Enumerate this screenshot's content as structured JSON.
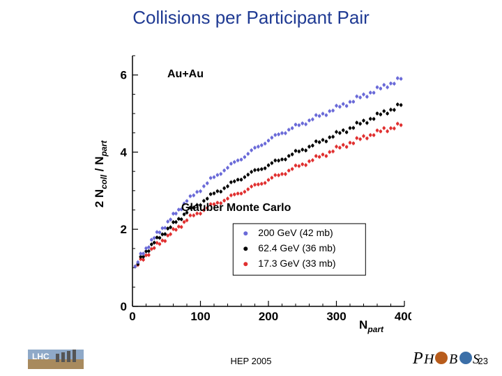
{
  "title": "Collisions per Participant Pair",
  "footer": "HEP 2005",
  "page": "23",
  "chart": {
    "type": "scatter",
    "xlabel": "N",
    "xlabel_sub": "part",
    "ylabel_coll": "coll",
    "ylabel_part": "part",
    "xlim": [
      0,
      400
    ],
    "ylim": [
      0,
      6.5
    ],
    "x_ticks": [
      0,
      100,
      200,
      300,
      400
    ],
    "y_ticks": [
      0,
      2,
      4,
      6
    ],
    "label_fontsize": 17,
    "tick_fontsize": 17,
    "marker_size": 2.2,
    "annotations": {
      "system": "Au+Au",
      "model": "Glauber Monte Carlo"
    },
    "legend": {
      "items": [
        {
          "color": "#6a6ad8",
          "label": "200 GeV (42 mb)"
        },
        {
          "color": "#000000",
          "label": "62.4 GeV (36 mb)"
        },
        {
          "color": "#e03030",
          "label": "17.3 GeV (33 mb)"
        }
      ]
    },
    "series_colors": {
      "s200": "#6a6ad8",
      "s62": "#000000",
      "s17": "#e03030"
    },
    "series": {
      "s200": [
        [
          4,
          1.0
        ],
        [
          8,
          1.15
        ],
        [
          12,
          1.3
        ],
        [
          16,
          1.4
        ],
        [
          20,
          1.5
        ],
        [
          24,
          1.6
        ],
        [
          28,
          1.7
        ],
        [
          32,
          1.78
        ],
        [
          36,
          1.86
        ],
        [
          40,
          1.94
        ],
        [
          44,
          2.02
        ],
        [
          48,
          2.1
        ],
        [
          52,
          2.18
        ],
        [
          56,
          2.26
        ],
        [
          60,
          2.34
        ],
        [
          64,
          2.42
        ],
        [
          68,
          2.5
        ],
        [
          72,
          2.58
        ],
        [
          76,
          2.66
        ],
        [
          80,
          2.74
        ],
        [
          85,
          2.8
        ],
        [
          90,
          2.88
        ],
        [
          95,
          2.96
        ],
        [
          100,
          3.04
        ],
        [
          105,
          3.12
        ],
        [
          110,
          3.2
        ],
        [
          115,
          3.28
        ],
        [
          120,
          3.34
        ],
        [
          125,
          3.4
        ],
        [
          130,
          3.48
        ],
        [
          135,
          3.54
        ],
        [
          140,
          3.6
        ],
        [
          145,
          3.66
        ],
        [
          150,
          3.72
        ],
        [
          155,
          3.78
        ],
        [
          160,
          3.84
        ],
        [
          165,
          3.9
        ],
        [
          170,
          3.96
        ],
        [
          175,
          4.02
        ],
        [
          180,
          4.08
        ],
        [
          185,
          4.14
        ],
        [
          190,
          4.2
        ],
        [
          195,
          4.26
        ],
        [
          200,
          4.3
        ],
        [
          205,
          4.36
        ],
        [
          210,
          4.4
        ],
        [
          215,
          4.46
        ],
        [
          220,
          4.5
        ],
        [
          225,
          4.54
        ],
        [
          230,
          4.58
        ],
        [
          235,
          4.62
        ],
        [
          240,
          4.66
        ],
        [
          245,
          4.7
        ],
        [
          250,
          4.74
        ],
        [
          255,
          4.78
        ],
        [
          260,
          4.82
        ],
        [
          265,
          4.86
        ],
        [
          270,
          4.9
        ],
        [
          275,
          4.94
        ],
        [
          280,
          4.98
        ],
        [
          285,
          5.02
        ],
        [
          290,
          5.06
        ],
        [
          295,
          5.1
        ],
        [
          300,
          5.14
        ],
        [
          305,
          5.18
        ],
        [
          310,
          5.22
        ],
        [
          315,
          5.26
        ],
        [
          320,
          5.3
        ],
        [
          325,
          5.34
        ],
        [
          330,
          5.38
        ],
        [
          335,
          5.42
        ],
        [
          340,
          5.46
        ],
        [
          345,
          5.5
        ],
        [
          350,
          5.54
        ],
        [
          355,
          5.58
        ],
        [
          360,
          5.62
        ],
        [
          365,
          5.65
        ],
        [
          370,
          5.7
        ],
        [
          375,
          5.74
        ],
        [
          380,
          5.78
        ],
        [
          385,
          5.82
        ],
        [
          390,
          5.86
        ],
        [
          395,
          5.9
        ]
      ],
      "s62": [
        [
          4,
          1.0
        ],
        [
          8,
          1.1
        ],
        [
          12,
          1.22
        ],
        [
          16,
          1.32
        ],
        [
          20,
          1.42
        ],
        [
          24,
          1.5
        ],
        [
          28,
          1.58
        ],
        [
          32,
          1.66
        ],
        [
          36,
          1.72
        ],
        [
          40,
          1.8
        ],
        [
          44,
          1.86
        ],
        [
          48,
          1.94
        ],
        [
          52,
          2.0
        ],
        [
          56,
          2.06
        ],
        [
          60,
          2.12
        ],
        [
          64,
          2.2
        ],
        [
          68,
          2.26
        ],
        [
          72,
          2.32
        ],
        [
          76,
          2.38
        ],
        [
          80,
          2.44
        ],
        [
          85,
          2.5
        ],
        [
          90,
          2.56
        ],
        [
          95,
          2.62
        ],
        [
          100,
          2.68
        ],
        [
          105,
          2.74
        ],
        [
          110,
          2.8
        ],
        [
          115,
          2.86
        ],
        [
          120,
          2.92
        ],
        [
          125,
          2.98
        ],
        [
          130,
          3.02
        ],
        [
          135,
          3.08
        ],
        [
          140,
          3.12
        ],
        [
          145,
          3.18
        ],
        [
          150,
          3.22
        ],
        [
          155,
          3.28
        ],
        [
          160,
          3.32
        ],
        [
          165,
          3.38
        ],
        [
          170,
          3.42
        ],
        [
          175,
          3.46
        ],
        [
          180,
          3.5
        ],
        [
          185,
          3.54
        ],
        [
          190,
          3.58
        ],
        [
          195,
          3.62
        ],
        [
          200,
          3.66
        ],
        [
          205,
          3.7
        ],
        [
          210,
          3.74
        ],
        [
          215,
          3.78
        ],
        [
          220,
          3.82
        ],
        [
          225,
          3.86
        ],
        [
          230,
          3.9
        ],
        [
          235,
          3.94
        ],
        [
          240,
          3.98
        ],
        [
          245,
          4.02
        ],
        [
          250,
          4.06
        ],
        [
          255,
          4.1
        ],
        [
          260,
          4.14
        ],
        [
          265,
          4.18
        ],
        [
          270,
          4.22
        ],
        [
          275,
          4.26
        ],
        [
          280,
          4.3
        ],
        [
          285,
          4.34
        ],
        [
          290,
          4.38
        ],
        [
          295,
          4.42
        ],
        [
          300,
          4.46
        ],
        [
          305,
          4.5
        ],
        [
          310,
          4.54
        ],
        [
          315,
          4.58
        ],
        [
          320,
          4.62
        ],
        [
          325,
          4.66
        ],
        [
          330,
          4.7
        ],
        [
          335,
          4.74
        ],
        [
          340,
          4.78
        ],
        [
          345,
          4.82
        ],
        [
          350,
          4.86
        ],
        [
          355,
          4.9
        ],
        [
          360,
          4.94
        ],
        [
          365,
          4.98
        ],
        [
          370,
          5.02
        ],
        [
          375,
          5.06
        ],
        [
          380,
          5.1
        ],
        [
          385,
          5.14
        ],
        [
          390,
          5.18
        ],
        [
          395,
          5.22
        ]
      ],
      "s17": [
        [
          4,
          1.0
        ],
        [
          8,
          1.08
        ],
        [
          12,
          1.16
        ],
        [
          16,
          1.24
        ],
        [
          20,
          1.32
        ],
        [
          24,
          1.4
        ],
        [
          28,
          1.46
        ],
        [
          32,
          1.52
        ],
        [
          36,
          1.58
        ],
        [
          40,
          1.64
        ],
        [
          44,
          1.7
        ],
        [
          48,
          1.76
        ],
        [
          52,
          1.82
        ],
        [
          56,
          1.88
        ],
        [
          60,
          1.94
        ],
        [
          64,
          2.0
        ],
        [
          68,
          2.06
        ],
        [
          72,
          2.12
        ],
        [
          76,
          2.18
        ],
        [
          80,
          2.24
        ],
        [
          85,
          2.3
        ],
        [
          90,
          2.36
        ],
        [
          95,
          2.4
        ],
        [
          100,
          2.46
        ],
        [
          105,
          2.5
        ],
        [
          110,
          2.56
        ],
        [
          115,
          2.6
        ],
        [
          120,
          2.64
        ],
        [
          125,
          2.68
        ],
        [
          130,
          2.72
        ],
        [
          135,
          2.76
        ],
        [
          140,
          2.8
        ],
        [
          145,
          2.84
        ],
        [
          150,
          2.88
        ],
        [
          155,
          2.92
        ],
        [
          160,
          2.96
        ],
        [
          165,
          3.0
        ],
        [
          170,
          3.04
        ],
        [
          175,
          3.08
        ],
        [
          180,
          3.12
        ],
        [
          185,
          3.16
        ],
        [
          190,
          3.2
        ],
        [
          195,
          3.24
        ],
        [
          200,
          3.28
        ],
        [
          205,
          3.32
        ],
        [
          210,
          3.36
        ],
        [
          215,
          3.4
        ],
        [
          220,
          3.44
        ],
        [
          225,
          3.48
        ],
        [
          230,
          3.52
        ],
        [
          235,
          3.56
        ],
        [
          240,
          3.6
        ],
        [
          245,
          3.64
        ],
        [
          250,
          3.68
        ],
        [
          255,
          3.72
        ],
        [
          260,
          3.76
        ],
        [
          265,
          3.8
        ],
        [
          270,
          3.84
        ],
        [
          275,
          3.88
        ],
        [
          280,
          3.92
        ],
        [
          285,
          3.96
        ],
        [
          290,
          4.0
        ],
        [
          295,
          4.04
        ],
        [
          300,
          4.08
        ],
        [
          305,
          4.12
        ],
        [
          310,
          4.16
        ],
        [
          315,
          4.2
        ],
        [
          320,
          4.24
        ],
        [
          325,
          4.26
        ],
        [
          330,
          4.3
        ],
        [
          335,
          4.34
        ],
        [
          340,
          4.38
        ],
        [
          345,
          4.42
        ],
        [
          350,
          4.44
        ],
        [
          355,
          4.48
        ],
        [
          360,
          4.5
        ],
        [
          365,
          4.54
        ],
        [
          370,
          4.58
        ],
        [
          375,
          4.6
        ],
        [
          380,
          4.62
        ],
        [
          385,
          4.66
        ],
        [
          390,
          4.68
        ],
        [
          395,
          4.7
        ]
      ]
    }
  }
}
